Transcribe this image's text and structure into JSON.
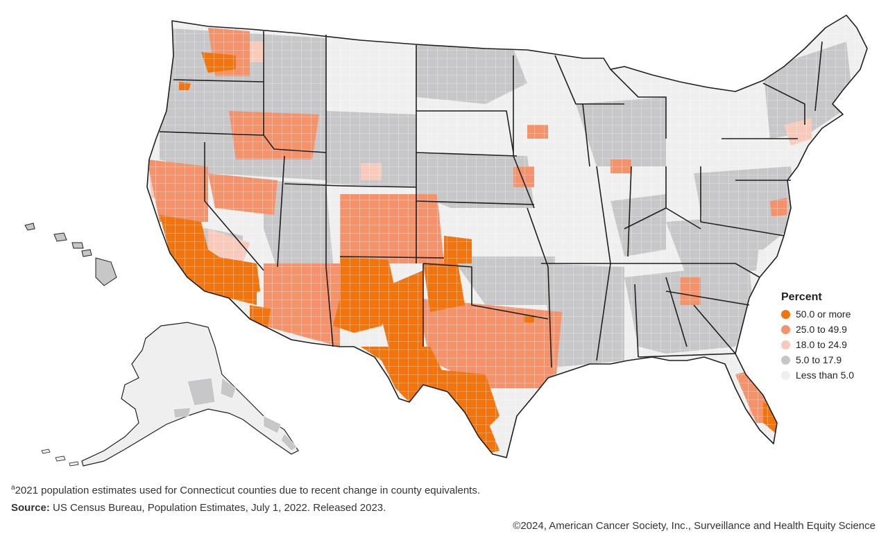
{
  "map": {
    "subject": "US county map shaded by percent",
    "colors": {
      "fifty_plus": "#f2740a",
      "twentyfive": "#f5926a",
      "eighteen": "#f9c9ba",
      "five": "#c7c7c9",
      "less_five": "#efefef",
      "border": "#1e1e1e"
    }
  },
  "legend": {
    "title": "Percent",
    "items": [
      {
        "label": "50.0 or more",
        "color": "#f2740a"
      },
      {
        "label": "25.0 to 49.9",
        "color": "#f5926a"
      },
      {
        "label": "18.0 to 24.9",
        "color": "#f9c9ba"
      },
      {
        "label": "5.0 to 17.9",
        "color": "#c7c7c9"
      },
      {
        "label": "Less than 5.0",
        "color": "#efefef"
      }
    ]
  },
  "footnote": {
    "marker": "a",
    "text": "2021 population estimates used for Connecticut counties due to recent change in county equivalents."
  },
  "source": {
    "label": "Source:",
    "text": "US Census Bureau, Population Estimates, July 1, 2022. Released 2023."
  },
  "copyright": "©2024, American Cancer Society, Inc., Surveillance and Health Equity Science"
}
